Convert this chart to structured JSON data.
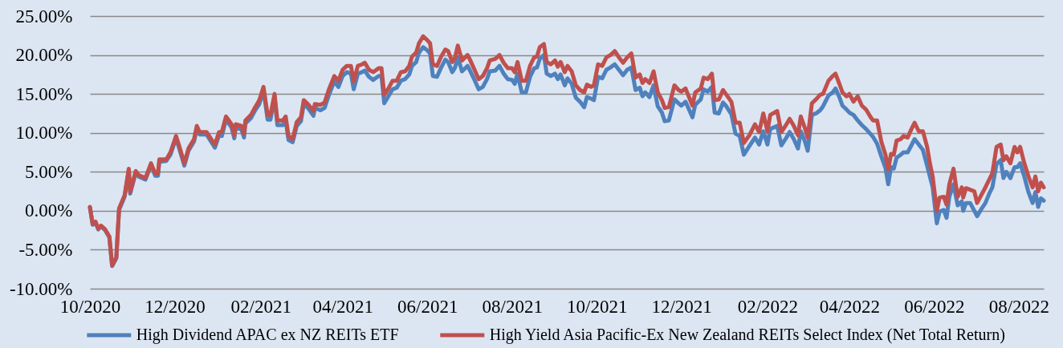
{
  "chart_data": {
    "type": "line",
    "x": [
      "2020-10-01",
      "2020-10-03",
      "2020-10-05",
      "2020-10-07",
      "2020-10-09",
      "2020-10-12",
      "2020-10-15",
      "2020-10-17",
      "2020-10-20",
      "2020-10-22",
      "2020-10-26",
      "2020-10-29",
      "2020-10-30",
      "2020-11-03",
      "2020-11-05",
      "2020-11-10",
      "2020-11-14",
      "2020-11-17",
      "2020-11-19",
      "2020-11-20",
      "2020-11-25",
      "2020-11-28",
      "2020-12-02",
      "2020-12-04",
      "2020-12-08",
      "2020-12-11",
      "2020-12-15",
      "2020-12-17",
      "2020-12-19",
      "2020-12-24",
      "2020-12-30",
      "2021-01-02",
      "2021-01-04",
      "2021-01-07",
      "2021-01-11",
      "2021-01-13",
      "2021-01-14",
      "2021-01-18",
      "2021-01-20",
      "2021-01-21",
      "2021-01-25",
      "2021-01-28",
      "2021-01-31",
      "2021-02-03",
      "2021-02-06",
      "2021-02-08",
      "2021-02-11",
      "2021-02-13",
      "2021-02-17",
      "2021-02-19",
      "2021-02-21",
      "2021-02-24",
      "2021-02-27",
      "2021-03-02",
      "2021-03-04",
      "2021-03-07",
      "2021-03-11",
      "2021-03-12",
      "2021-03-16",
      "2021-03-19",
      "2021-03-22",
      "2021-03-26",
      "2021-03-29",
      "2021-04-01",
      "2021-04-04",
      "2021-04-07",
      "2021-04-09",
      "2021-04-12",
      "2021-04-15",
      "2021-04-17",
      "2021-04-20",
      "2021-04-23",
      "2021-04-27",
      "2021-04-29",
      "2021-05-01",
      "2021-05-04",
      "2021-05-07",
      "2021-05-10",
      "2021-05-13",
      "2021-05-16",
      "2021-05-19",
      "2021-05-21",
      "2021-05-24",
      "2021-05-26",
      "2021-05-29",
      "2021-06-01",
      "2021-06-03",
      "2021-06-05",
      "2021-06-08",
      "2021-06-11",
      "2021-06-14",
      "2021-06-16",
      "2021-06-19",
      "2021-06-21",
      "2021-06-23",
      "2021-06-26",
      "2021-06-30",
      "2021-07-02",
      "2021-07-05",
      "2021-07-08",
      "2021-07-11",
      "2021-07-14",
      "2021-07-16",
      "2021-07-20",
      "2021-07-23",
      "2021-07-26",
      "2021-07-29",
      "2021-08-01",
      "2021-08-03",
      "2021-08-05",
      "2021-08-08",
      "2021-08-11",
      "2021-08-14",
      "2021-08-17",
      "2021-08-19",
      "2021-08-21",
      "2021-08-24",
      "2021-08-26",
      "2021-08-29",
      "2021-09-01",
      "2021-09-03",
      "2021-09-05",
      "2021-09-08",
      "2021-09-10",
      "2021-09-13",
      "2021-09-16",
      "2021-09-19",
      "2021-09-22",
      "2021-09-24",
      "2021-09-27",
      "2021-09-29",
      "2021-10-02",
      "2021-10-05",
      "2021-10-08",
      "2021-10-11",
      "2021-10-14",
      "2021-10-17",
      "2021-10-20",
      "2021-10-23",
      "2021-10-26",
      "2021-10-29",
      "2021-11-01",
      "2021-11-03",
      "2021-11-05",
      "2021-11-08",
      "2021-11-11",
      "2021-11-14",
      "2021-11-17",
      "2021-11-19",
      "2021-11-22",
      "2021-11-26",
      "2021-11-29",
      "2021-12-01",
      "2021-12-04",
      "2021-12-09",
      "2021-12-11",
      "2021-12-15",
      "2021-12-17",
      "2021-12-20",
      "2021-12-23",
      "2021-12-25",
      "2021-12-28",
      "2021-12-31",
      "2022-01-02",
      "2022-01-06",
      "2022-01-09",
      "2022-01-12",
      "2022-01-15",
      "2022-01-19",
      "2022-01-23",
      "2022-01-26",
      "2022-01-29",
      "2022-02-01",
      "2022-02-03",
      "2022-02-08",
      "2022-02-11",
      "2022-02-14",
      "2022-02-17",
      "2022-02-20",
      "2022-02-23",
      "2022-02-25",
      "2022-02-28",
      "2022-03-02",
      "2022-03-05",
      "2022-03-08",
      "2022-03-11",
      "2022-03-13",
      "2022-03-17",
      "2022-03-20",
      "2022-03-22",
      "2022-03-25",
      "2022-03-27",
      "2022-03-30",
      "2022-04-01",
      "2022-04-04",
      "2022-04-07",
      "2022-04-10",
      "2022-04-13",
      "2022-04-16",
      "2022-04-18",
      "2022-04-21",
      "2022-04-24",
      "2022-04-27",
      "2022-04-29",
      "2022-05-01",
      "2022-05-03",
      "2022-05-05",
      "2022-05-08",
      "2022-05-10",
      "2022-05-13",
      "2022-05-16",
      "2022-05-18",
      "2022-05-21",
      "2022-05-24",
      "2022-05-27",
      "2022-05-29",
      "2022-05-31",
      "2022-06-03",
      "2022-06-05",
      "2022-06-08",
      "2022-06-10",
      "2022-06-12",
      "2022-06-15",
      "2022-06-18",
      "2022-06-21",
      "2022-06-22",
      "2022-06-24",
      "2022-06-27",
      "2022-06-30",
      "2022-07-02",
      "2022-07-05",
      "2022-07-08",
      "2022-07-11",
      "2022-07-13",
      "2022-07-16",
      "2022-07-19",
      "2022-07-21",
      "2022-07-23",
      "2022-07-26",
      "2022-07-29",
      "2022-07-31",
      "2022-08-02",
      "2022-08-05",
      "2022-08-08",
      "2022-08-11",
      "2022-08-13",
      "2022-08-15",
      "2022-08-17",
      "2022-08-19"
    ],
    "series": [
      {
        "name": "High Dividend APAC ex NZ REITs ETF",
        "color": "#4f81bd",
        "values": [
          0.4,
          -1.8,
          -1.5,
          -2.4,
          -2.0,
          -2.5,
          -3.4,
          -7.1,
          -6.1,
          0.1,
          1.8,
          5.2,
          2.2,
          4.9,
          4.4,
          4.0,
          5.9,
          4.5,
          4.5,
          6.3,
          6.4,
          7.2,
          9.3,
          8.2,
          5.8,
          7.7,
          8.9,
          10.5,
          9.8,
          9.8,
          8.1,
          9.7,
          9.6,
          11.7,
          10.7,
          9.3,
          10.7,
          10.5,
          9.4,
          11.2,
          11.9,
          12.9,
          13.7,
          15.5,
          11.7,
          11.7,
          14.5,
          11.0,
          11.0,
          11.6,
          9.1,
          8.8,
          10.9,
          11.5,
          13.7,
          13.2,
          12.2,
          13.2,
          12.9,
          13.2,
          14.8,
          16.6,
          15.9,
          17.3,
          17.8,
          17.6,
          15.6,
          17.6,
          17.8,
          18.0,
          17.2,
          16.8,
          17.3,
          17.3,
          13.8,
          14.7,
          15.6,
          15.8,
          16.7,
          16.9,
          17.5,
          18.6,
          19.1,
          20.3,
          21.0,
          20.6,
          20.2,
          17.3,
          17.2,
          18.4,
          19.4,
          19.1,
          17.8,
          18.4,
          19.7,
          17.9,
          18.6,
          17.9,
          16.8,
          15.6,
          15.9,
          16.9,
          17.9,
          18.0,
          18.6,
          17.6,
          16.9,
          16.8,
          16.3,
          17.6,
          15.2,
          15.2,
          17.2,
          18.3,
          18.4,
          19.5,
          20.0,
          17.6,
          17.3,
          17.6,
          16.9,
          17.5,
          16.1,
          17.0,
          16.3,
          14.5,
          14.0,
          13.3,
          14.6,
          14.4,
          14.2,
          17.2,
          17.0,
          18.1,
          18.4,
          18.8,
          18.1,
          17.4,
          18.1,
          18.4,
          15.5,
          15.8,
          14.7,
          15.2,
          14.6,
          16.1,
          13.4,
          12.6,
          11.5,
          11.6,
          14.3,
          13.8,
          13.5,
          14.0,
          12.0,
          13.6,
          14.3,
          15.6,
          15.3,
          15.9,
          12.6,
          12.5,
          13.9,
          13.5,
          12.4,
          9.9,
          9.6,
          7.2,
          8.3,
          9.4,
          8.5,
          10.2,
          8.5,
          10.5,
          10.9,
          8.4,
          9.2,
          10.1,
          9.2,
          8.0,
          10.2,
          8.9,
          7.7,
          12.3,
          12.5,
          12.9,
          13.4,
          14.8,
          15.2,
          15.7,
          14.5,
          13.5,
          13.0,
          12.6,
          12.3,
          11.6,
          11.0,
          10.5,
          9.9,
          9.5,
          8.6,
          7.0,
          5.5,
          3.4,
          5.6,
          5.4,
          6.8,
          7.2,
          7.5,
          7.5,
          8.5,
          9.2,
          8.5,
          7.8,
          5.8,
          4.4,
          3.0,
          -1.6,
          -0.1,
          0.1,
          -0.9,
          1.8,
          3.4,
          0.7,
          1.2,
          0.0,
          1.0,
          1.0,
          0.0,
          -0.7,
          0.2,
          1.0,
          2.3,
          3.0,
          6.0,
          6.5,
          4.2,
          5.0,
          4.2,
          5.6,
          5.6,
          6.1,
          4.4,
          2.4,
          1.0,
          2.4,
          0.5,
          1.6,
          1.3
        ]
      },
      {
        "name": "High Yield Asia Pacific-Ex New Zealand REITs Select Index (Net Total Return)",
        "color": "#c0504d",
        "values": [
          0.5,
          -1.7,
          -1.4,
          -2.3,
          -1.9,
          -2.4,
          -3.3,
          -7.0,
          -6.0,
          0.3,
          2.0,
          5.4,
          2.4,
          5.1,
          4.6,
          4.2,
          6.1,
          4.8,
          4.8,
          6.6,
          6.6,
          7.5,
          9.6,
          8.5,
          6.1,
          8.0,
          9.2,
          10.9,
          10.1,
          10.1,
          8.5,
          10.1,
          10.1,
          12.1,
          11.1,
          9.7,
          11.1,
          10.9,
          9.9,
          11.6,
          12.3,
          13.3,
          14.2,
          15.9,
          12.3,
          12.3,
          15.0,
          11.6,
          11.6,
          12.1,
          9.6,
          9.2,
          11.4,
          12.0,
          14.2,
          13.7,
          12.8,
          13.7,
          13.6,
          13.9,
          15.5,
          17.3,
          16.7,
          18.1,
          18.6,
          18.6,
          16.6,
          18.6,
          18.8,
          19.0,
          18.1,
          17.8,
          18.3,
          18.3,
          14.9,
          15.7,
          16.7,
          16.7,
          17.8,
          17.9,
          18.6,
          19.8,
          20.3,
          21.5,
          22.4,
          21.9,
          21.5,
          18.8,
          18.6,
          19.8,
          20.7,
          20.5,
          19.1,
          19.7,
          21.2,
          19.3,
          20.0,
          19.3,
          18.1,
          16.9,
          17.3,
          18.3,
          19.3,
          19.5,
          20.0,
          19.0,
          18.3,
          18.3,
          17.8,
          19.1,
          16.7,
          16.7,
          18.6,
          19.7,
          19.8,
          21.0,
          21.4,
          19.1,
          18.8,
          19.3,
          18.5,
          19.1,
          17.8,
          18.6,
          17.9,
          16.1,
          15.5,
          15.2,
          16.2,
          15.9,
          16.1,
          18.8,
          18.6,
          19.7,
          20.0,
          20.5,
          19.7,
          19.0,
          19.7,
          20.2,
          17.1,
          17.5,
          16.4,
          16.9,
          16.4,
          17.9,
          15.2,
          14.2,
          13.2,
          13.3,
          16.1,
          15.5,
          15.3,
          15.7,
          13.5,
          15.2,
          15.7,
          17.1,
          16.9,
          17.6,
          14.2,
          14.3,
          15.5,
          15.0,
          14.0,
          11.3,
          11.3,
          8.7,
          9.7,
          11.1,
          10.1,
          12.5,
          10.2,
          12.3,
          12.8,
          10.1,
          10.9,
          11.8,
          10.9,
          9.7,
          12.1,
          10.6,
          9.4,
          13.8,
          14.3,
          14.9,
          15.0,
          16.7,
          17.3,
          17.6,
          16.2,
          15.2,
          14.7,
          15.0,
          14.0,
          14.7,
          13.5,
          13.0,
          12.1,
          11.6,
          11.6,
          8.9,
          7.2,
          5.3,
          7.3,
          7.2,
          9.0,
          9.2,
          9.6,
          9.4,
          10.6,
          11.3,
          10.2,
          10.2,
          8.2,
          6.1,
          4.4,
          0.0,
          1.7,
          1.8,
          0.8,
          3.4,
          5.4,
          1.8,
          3.0,
          1.7,
          2.9,
          2.7,
          2.5,
          1.0,
          2.0,
          3.0,
          4.1,
          4.8,
          8.2,
          8.5,
          6.5,
          7.0,
          6.1,
          8.2,
          7.5,
          8.2,
          6.1,
          4.4,
          3.0,
          4.4,
          2.5,
          3.6,
          3.0
        ]
      }
    ],
    "xlim": [
      "2020-10-01",
      "2022-08-19"
    ],
    "xticks": [
      {
        "value": "2020-10-01",
        "label": "10/2020"
      },
      {
        "value": "2020-12-01",
        "label": "12/2020"
      },
      {
        "value": "2021-02-01",
        "label": "02/2021"
      },
      {
        "value": "2021-04-01",
        "label": "04/2021"
      },
      {
        "value": "2021-06-01",
        "label": "06/2021"
      },
      {
        "value": "2021-08-01",
        "label": "08/2021"
      },
      {
        "value": "2021-10-01",
        "label": "10/2021"
      },
      {
        "value": "2021-12-01",
        "label": "12/2021"
      },
      {
        "value": "2022-02-01",
        "label": "02/2022"
      },
      {
        "value": "2022-04-01",
        "label": "04/2022"
      },
      {
        "value": "2022-06-01",
        "label": "06/2022"
      },
      {
        "value": "2022-08-01",
        "label": "08/2022"
      }
    ],
    "ylim": [
      -10,
      25
    ],
    "yticks": [
      {
        "value": -10,
        "label": "-10.00%"
      },
      {
        "value": -5,
        "label": "-5.00%"
      },
      {
        "value": 0,
        "label": "0.00%"
      },
      {
        "value": 5,
        "label": "5.00%"
      },
      {
        "value": 10,
        "label": "10.00%"
      },
      {
        "value": 15,
        "label": "15.00%"
      },
      {
        "value": 20,
        "label": "20.00%"
      },
      {
        "value": 25,
        "label": "25.00%"
      }
    ],
    "grid": "y",
    "legend": "bottom",
    "marker": "none",
    "line_style": "solid"
  }
}
